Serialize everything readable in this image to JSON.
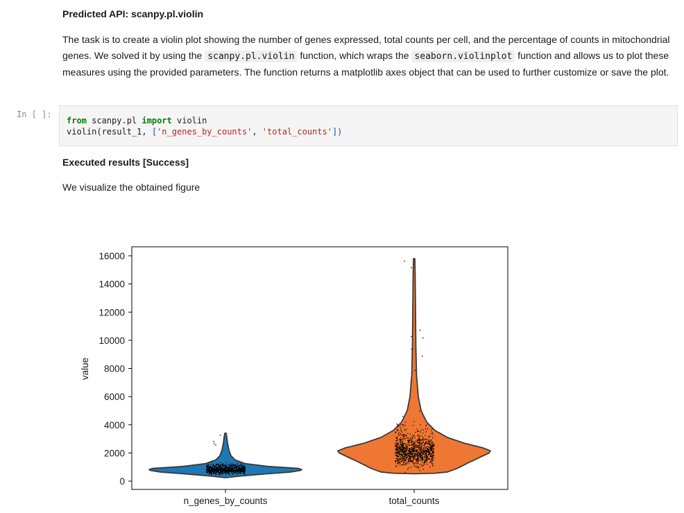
{
  "markdown": {
    "api_heading": "Predicted API: scanpy.pl.violin",
    "description": {
      "part1": "The task is to create a violin plot showing the number of genes expressed, total counts per cell, and the percentage of counts in mitochondrial genes. We solved it by using the ",
      "code1": "scanpy.pl.violin",
      "part2": " function, which wraps the ",
      "code2": "seaborn.violinplot",
      "part3": " function and allows us to plot these measures using the provided parameters. The function returns a matplotlib axes object that can be used to further customize or save the plot."
    },
    "results_heading": "Executed results [Success]",
    "results_text": "We visualize the obtained figure"
  },
  "code_cell": {
    "prompt": "In [ ]:",
    "line1": {
      "kw_from": "from",
      "module": " scanpy.pl ",
      "kw_import": "import",
      "name": " violin"
    },
    "line2": {
      "call": "violin(result_1, ",
      "open": "[",
      "arg1": "'n_genes_by_counts'",
      "sep": ", ",
      "arg2": "'total_counts'",
      "close": "])"
    }
  },
  "chart_data": {
    "type": "violin",
    "title": "",
    "xlabel": "",
    "ylabel": "value",
    "categories": [
      "n_genes_by_counts",
      "total_counts"
    ],
    "yticks": [
      0,
      2000,
      4000,
      6000,
      8000,
      10000,
      12000,
      14000,
      16000
    ],
    "ylim": [
      -500,
      16600
    ],
    "grid": false,
    "series": [
      {
        "category": "n_genes_by_counts",
        "color": "#1f77b4",
        "min": 250,
        "median": 820,
        "max": 3400,
        "outliers": [
          2600,
          2700,
          2850,
          3300
        ]
      },
      {
        "category": "total_counts",
        "color": "#ee7733",
        "min": 520,
        "median": 2050,
        "max": 15800,
        "outliers": [
          7900,
          8900,
          9400,
          10200,
          10300,
          10750,
          15200,
          15650
        ]
      }
    ],
    "point_color": "#000000"
  }
}
